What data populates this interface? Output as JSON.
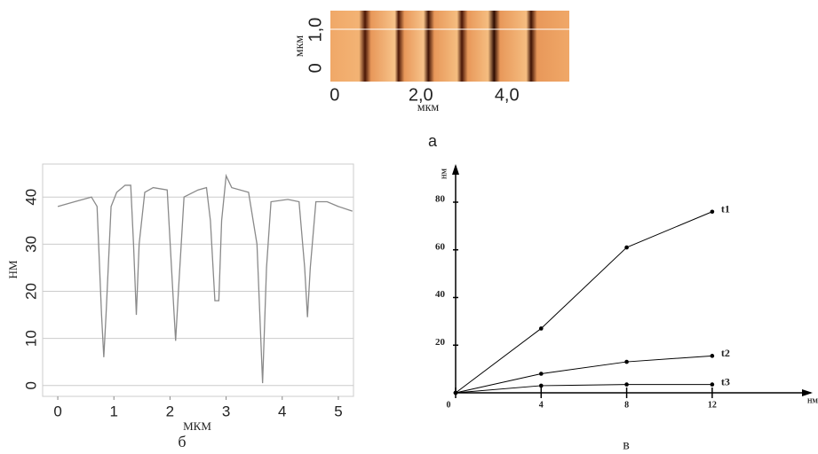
{
  "chart_data": [
    {
      "type": "image",
      "xlabel": "мкм",
      "ylabel": "мкм",
      "caption": "а",
      "xlim": [
        -0.1,
        5.45
      ],
      "xticks": [
        0,
        {
          "value": 2,
          "label": "2,0"
        },
        {
          "value": 4,
          "label": "4,0"
        }
      ],
      "ylim": [
        -0.35,
        1.5
      ],
      "yticks": [
        0,
        {
          "value": 1,
          "label": "1,0"
        }
      ]
    },
    {
      "type": "line",
      "xlabel": "МКМ",
      "ylabel": "НМ",
      "caption": "б",
      "grid": true,
      "xlim": [
        -0.27,
        5.27
      ],
      "xticks": [
        0,
        1,
        2,
        3,
        4,
        5
      ],
      "ylim": [
        -2.3,
        47
      ],
      "yticks": [
        0,
        10,
        20,
        30,
        40
      ],
      "series": [
        {
          "color": "#8a8a8a",
          "x": [
            0,
            0.3,
            0.6,
            0.7,
            0.78,
            0.82,
            0.86,
            0.95,
            1.05,
            1.2,
            1.3,
            1.35,
            1.4,
            1.45,
            1.55,
            1.7,
            1.95,
            2.05,
            2.1,
            2.15,
            2.25,
            2.5,
            2.65,
            2.72,
            2.8,
            2.87,
            2.92,
            3.0,
            3.1,
            3.4,
            3.55,
            3.65,
            3.72,
            3.8,
            4.1,
            4.3,
            4.4,
            4.45,
            4.5,
            4.6,
            4.8,
            5.0,
            5.25
          ],
          "values": [
            38,
            39,
            40,
            38,
            15,
            6,
            15,
            38,
            41,
            42.5,
            42.5,
            30,
            15,
            30,
            41,
            42,
            41.5,
            20,
            9.5,
            20,
            40,
            41.5,
            42,
            35,
            18,
            18,
            35,
            44.5,
            42,
            41,
            30,
            0.5,
            25,
            39,
            39.5,
            39,
            25,
            14.5,
            25,
            39,
            39,
            38,
            37
          ]
        }
      ]
    },
    {
      "type": "line",
      "xlabel": "НМ",
      "ylabel": "НМ",
      "caption": "в",
      "grid": false,
      "xlim": [
        0,
        16.7
      ],
      "xticks": [
        0,
        4,
        8,
        12
      ],
      "ylim": [
        0,
        96
      ],
      "yticks": [
        20,
        40,
        60,
        80
      ],
      "series": [
        {
          "name": "t1",
          "color": "#000000",
          "x": [
            0,
            4,
            8,
            12
          ],
          "values": [
            0,
            27,
            61,
            76
          ]
        },
        {
          "name": "t2",
          "color": "#000000",
          "x": [
            0,
            4,
            8,
            12
          ],
          "values": [
            0,
            8,
            13,
            15.5
          ]
        },
        {
          "name": "t3",
          "color": "#000000",
          "x": [
            0,
            4,
            8,
            12
          ],
          "values": [
            0,
            3,
            3.5,
            3.5
          ]
        }
      ]
    }
  ]
}
